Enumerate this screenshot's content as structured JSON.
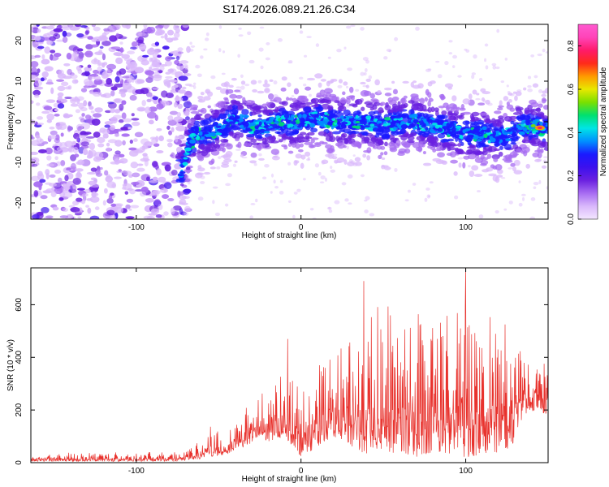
{
  "chart_data": [
    {
      "type": "heatmap",
      "title": "S174.2026.089.21.26.C34",
      "xlabel": "Height of straight line (km)",
      "ylabel": "Frequency (Hz)",
      "xlim": [
        -164,
        150
      ],
      "ylim": [
        -24,
        24
      ],
      "xticks": [
        -100,
        0,
        100
      ],
      "yticks": [
        -20,
        -10,
        0,
        10,
        20
      ],
      "colorbar": {
        "label": "Normalized spectral amplitude",
        "range": [
          0,
          0.9
        ],
        "ticks": [
          "0.0",
          "0.2",
          "0.4",
          "0.6",
          "0.8"
        ],
        "colors": [
          "#f3e6ff",
          "#d9b8fb",
          "#a76cf2",
          "#6a20e0",
          "#3c10ee",
          "#1a1aff",
          "#0090ff",
          "#00e5e5",
          "#00e070",
          "#7ae000",
          "#e8e800",
          "#ff9a00",
          "#ff2a1a",
          "#ff1a6a",
          "#ff44b8",
          "#ff5ad0"
        ]
      },
      "ridge_centerline": {
        "x": [
          -72,
          -68,
          -64,
          -58,
          -52,
          -45,
          -40,
          -30,
          -20,
          -10,
          0,
          10,
          20,
          30,
          40,
          50,
          60,
          70,
          80,
          90,
          100,
          110,
          120,
          128,
          135,
          142,
          148
        ],
        "y": [
          -12,
          -6,
          -3,
          -3,
          -2,
          0,
          1,
          -1,
          -1,
          0,
          0,
          1,
          0,
          0,
          0,
          -1,
          0,
          0,
          -1,
          -2,
          -3,
          -3,
          -4,
          -3,
          -1,
          -1,
          -2
        ]
      },
      "noise_region_x": [
        -164,
        -72
      ]
    },
    {
      "type": "line",
      "title": "",
      "xlabel": "Height of straight line (km)",
      "ylabel": "SNR (10 * v/v)",
      "xlim": [
        -164,
        150
      ],
      "ylim": [
        0,
        740
      ],
      "xticks": [
        -100,
        0,
        100
      ],
      "yticks": [
        0,
        200,
        400,
        600
      ],
      "color": "#e8322d",
      "series": [
        {
          "name": "SNR",
          "envelope_x": [
            -164,
            -120,
            -80,
            -65,
            -55,
            -45,
            -40,
            -30,
            -20,
            -10,
            0,
            10,
            20,
            30,
            40,
            50,
            60,
            70,
            80,
            90,
            100,
            110,
            120,
            128,
            135,
            142,
            150
          ],
          "envelope_upper": [
            40,
            40,
            40,
            60,
            150,
            120,
            180,
            240,
            300,
            340,
            320,
            380,
            420,
            480,
            560,
            620,
            560,
            600,
            580,
            600,
            620,
            560,
            560,
            500,
            420,
            400,
            380
          ],
          "envelope_lower": [
            5,
            5,
            5,
            10,
            20,
            30,
            50,
            70,
            80,
            100,
            20,
            60,
            100,
            60,
            30,
            40,
            30,
            20,
            40,
            30,
            20,
            30,
            40,
            60,
            180,
            200,
            180
          ],
          "peaks": [
            {
              "x": 38,
              "y": 690
            },
            {
              "x": 100,
              "y": 740
            },
            {
              "x": -8,
              "y": 470
            }
          ]
        }
      ]
    }
  ]
}
